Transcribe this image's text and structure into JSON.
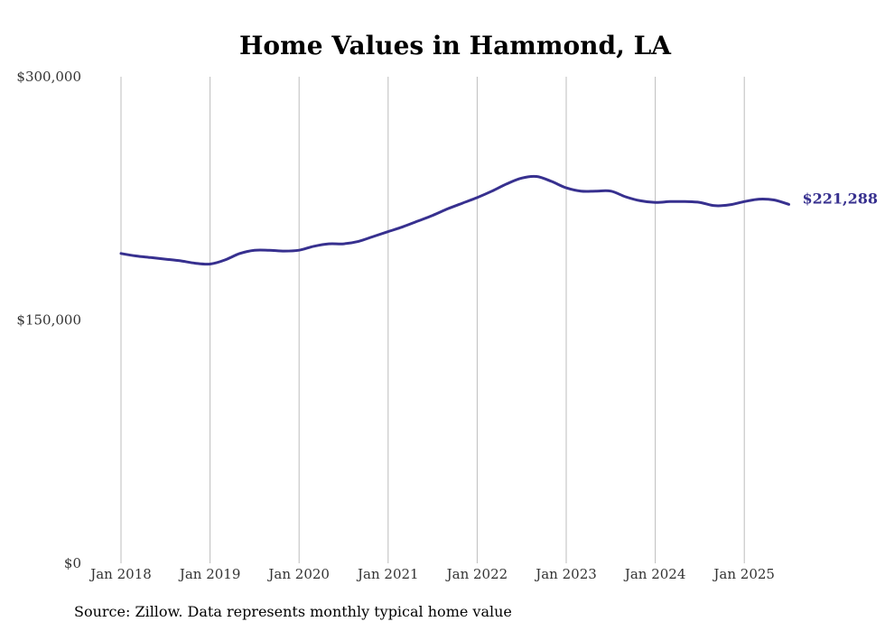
{
  "chart_data": {
    "type": "line",
    "title": "Home Values in Hammond, LA",
    "xlabel": "",
    "ylabel": "",
    "ylim": [
      0,
      300000
    ],
    "y_ticks": [
      {
        "value": 0,
        "label": "$0"
      },
      {
        "value": 150000,
        "label": "$150,000"
      },
      {
        "value": 300000,
        "label": "$300,000"
      }
    ],
    "x_ticks": [
      {
        "date": "2018-01",
        "label": "Jan 2018"
      },
      {
        "date": "2019-01",
        "label": "Jan 2019"
      },
      {
        "date": "2020-01",
        "label": "Jan 2020"
      },
      {
        "date": "2021-01",
        "label": "Jan 2021"
      },
      {
        "date": "2022-01",
        "label": "Jan 2022"
      },
      {
        "date": "2023-01",
        "label": "Jan 2023"
      },
      {
        "date": "2024-01",
        "label": "Jan 2024"
      },
      {
        "date": "2025-01",
        "label": "Jan 2025"
      }
    ],
    "grid": "vertical",
    "line_color": "#37308f",
    "end_label": "$221,288",
    "series": [
      {
        "x": [
          "2018-01",
          "2018-03",
          "2018-05",
          "2018-07",
          "2018-09",
          "2018-11",
          "2019-01",
          "2019-03",
          "2019-05",
          "2019-07",
          "2019-09",
          "2019-11",
          "2020-01",
          "2020-03",
          "2020-05",
          "2020-07",
          "2020-09",
          "2020-11",
          "2021-01",
          "2021-03",
          "2021-05",
          "2021-07",
          "2021-09",
          "2021-11",
          "2022-01",
          "2022-03",
          "2022-05",
          "2022-07",
          "2022-09",
          "2022-11",
          "2023-01",
          "2023-03",
          "2023-05",
          "2023-07",
          "2023-09",
          "2023-11",
          "2024-01",
          "2024-03",
          "2024-05",
          "2024-07",
          "2024-09",
          "2024-11",
          "2025-01",
          "2025-03",
          "2025-05",
          "2025-07"
        ],
        "values": [
          191000,
          189500,
          188500,
          187500,
          186500,
          185000,
          184500,
          187000,
          191000,
          193000,
          193000,
          192500,
          193000,
          195500,
          197000,
          197000,
          198500,
          201500,
          204500,
          207500,
          211000,
          214500,
          218500,
          222000,
          225500,
          229500,
          234000,
          237500,
          238500,
          235500,
          231500,
          229500,
          229500,
          229500,
          226000,
          223500,
          222500,
          223000,
          223000,
          222500,
          220500,
          221000,
          223000,
          224500,
          224000,
          221288
        ]
      }
    ]
  },
  "source_note": "Source: Zillow. Data represents monthly typical home value"
}
